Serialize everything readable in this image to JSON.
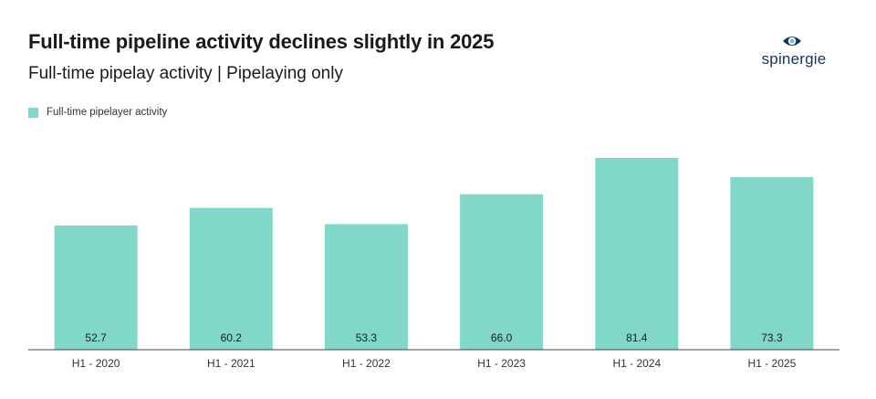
{
  "header": {
    "title": "Full-time pipeline activity declines slightly in 2025",
    "subtitle": "Full-time pipelay activity | Pipelaying only",
    "logo_text": "spinergie"
  },
  "colors": {
    "bar": "#82d8c8",
    "axis": "#444444",
    "logo": "#17325c"
  },
  "chart_data": {
    "type": "bar",
    "categories": [
      "H1 - 2020",
      "H1 - 2021",
      "H1 - 2022",
      "H1 - 2023",
      "H1 - 2024",
      "H1 - 2025"
    ],
    "series": [
      {
        "name": "Full-time pipelayer activity",
        "values": [
          52.7,
          60.2,
          53.3,
          66.0,
          81.4,
          73.3
        ]
      }
    ],
    "title": "Full-time pipeline activity declines slightly in 2025",
    "subtitle": "Full-time pipelay activity | Pipelaying only",
    "legend": "top-left",
    "grid": false,
    "data_labels": [
      "52.7",
      "60.2",
      "53.3",
      "66.0",
      "81.4",
      "73.3"
    ]
  }
}
